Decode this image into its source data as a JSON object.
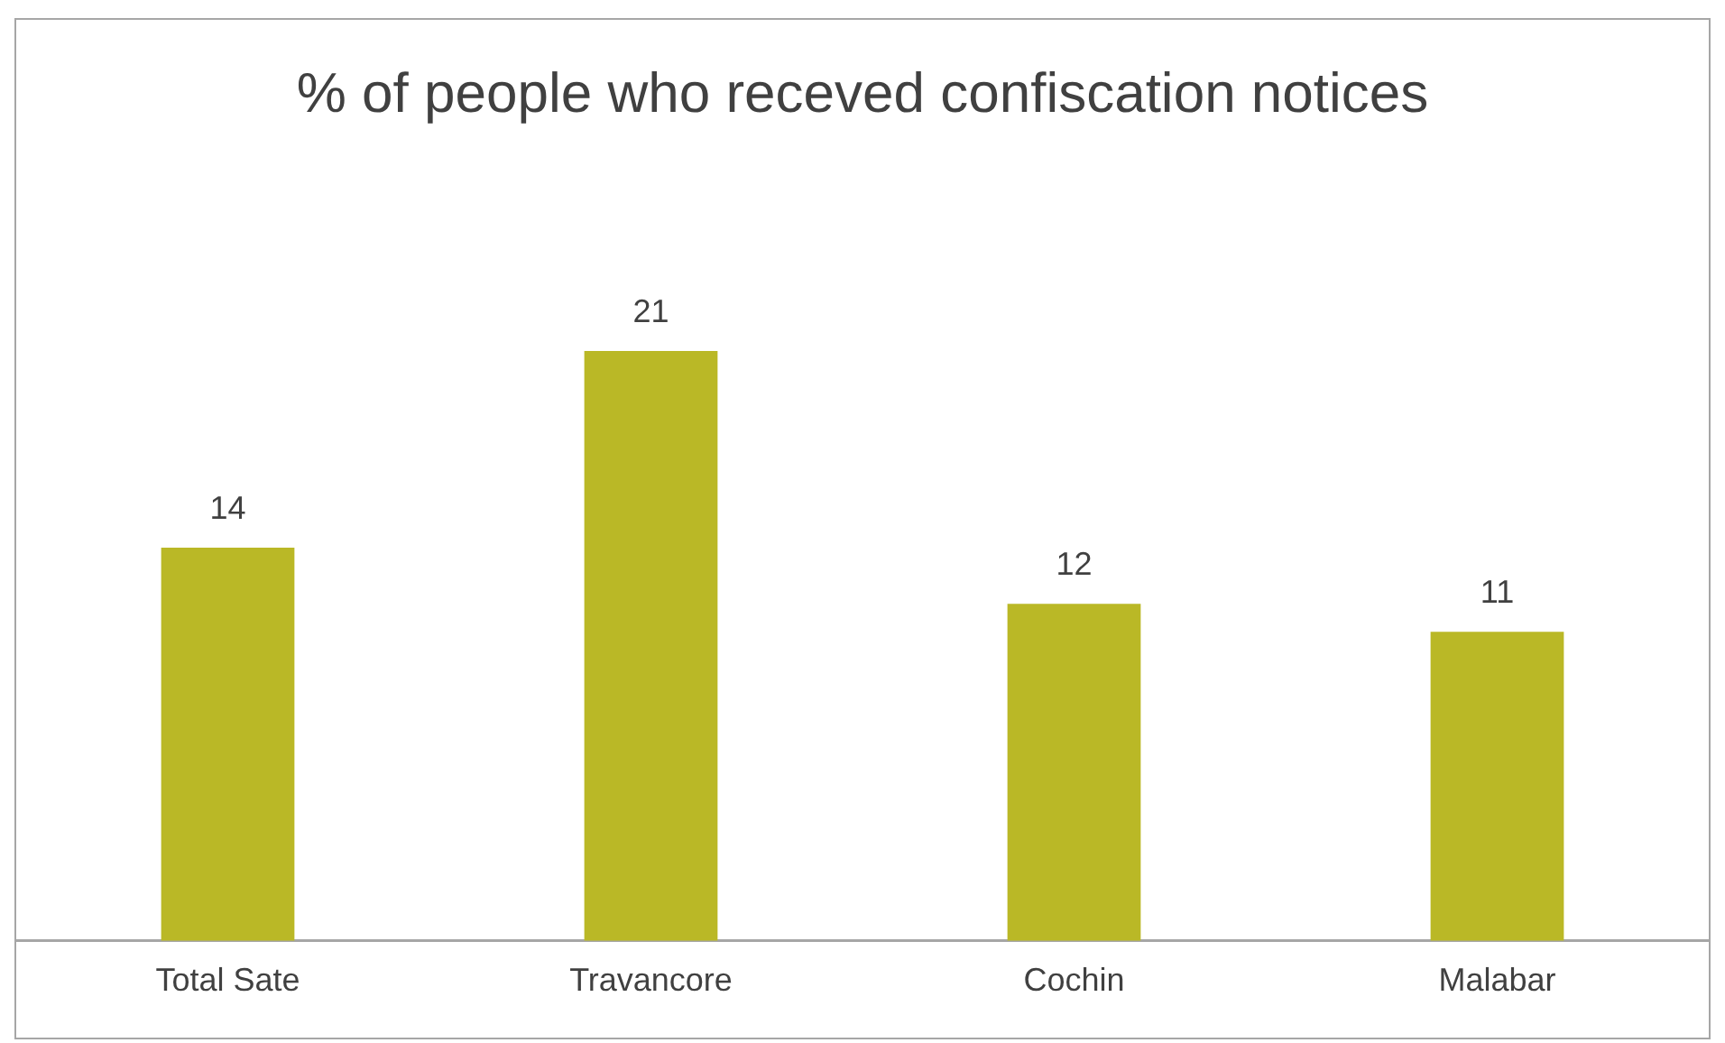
{
  "chart_data": {
    "type": "bar",
    "title": "% of people who receved confiscation notices",
    "categories": [
      "Total Sate",
      "Travancore",
      "Cochin",
      "Malabar"
    ],
    "values": [
      14,
      21,
      12,
      11
    ],
    "color": "#bab826",
    "data_labels": true,
    "grid": false,
    "legend": false
  }
}
